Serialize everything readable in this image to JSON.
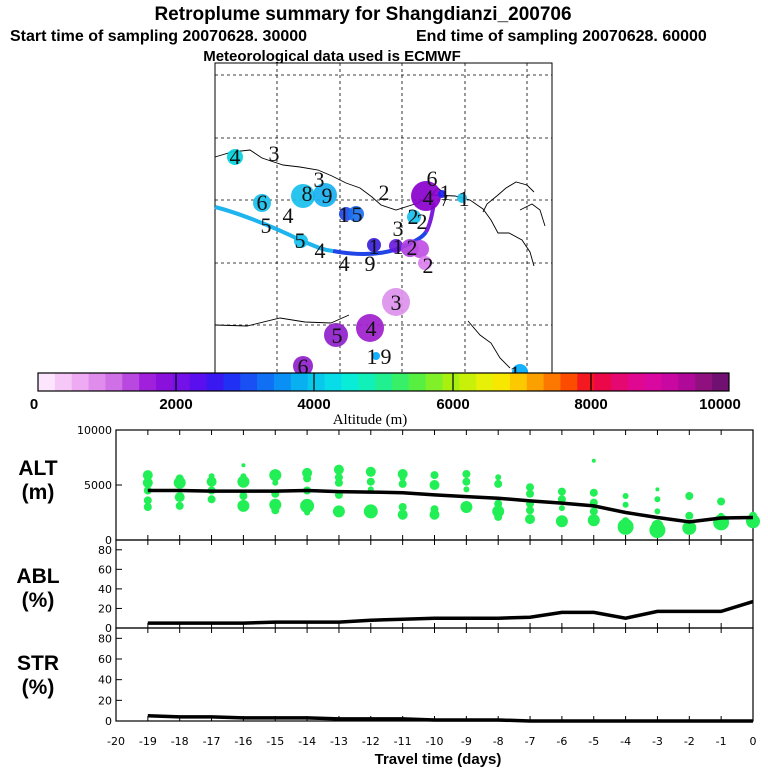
{
  "header": {
    "title": "Retroplume summary for Shangdianzi_200706",
    "start": "Start time of sampling 20070628. 30000",
    "end": "End time of sampling 20070628. 60000",
    "met": "Meteorological data used is ECMWF"
  },
  "colors": {
    "plume_line": "#1e4fe0",
    "plume_line_west": "#1ea8e8",
    "alt_dots": "#22ee55",
    "series_line": "#000000"
  },
  "map": {
    "labels": [
      {
        "t": "4",
        "c": "#00ccdd"
      },
      {
        "t": "3",
        "c": "#ffffff"
      },
      {
        "t": "3",
        "c": "#00ccdd"
      },
      {
        "t": "8",
        "c": "#00ccdd"
      },
      {
        "t": "9",
        "c": "#00a8ee"
      },
      {
        "t": "6",
        "c": "#00ccdd"
      },
      {
        "t": "5",
        "c": "#ffffff"
      },
      {
        "t": "4",
        "c": "#ffffff"
      },
      {
        "t": "1",
        "c": "#2222ee"
      },
      {
        "t": "5",
        "c": "#2222ee"
      },
      {
        "t": "5",
        "c": "#00ccdd"
      },
      {
        "t": "4",
        "c": "#ffffff"
      },
      {
        "t": "4",
        "c": "#ffffff"
      },
      {
        "t": "9",
        "c": "#3a20dd"
      },
      {
        "t": "2",
        "c": "#ffffff"
      },
      {
        "t": "2",
        "c": "#00ccdd"
      },
      {
        "t": "1",
        "c": "#5a10cc"
      },
      {
        "t": "1",
        "c": "#8a00cc"
      },
      {
        "t": "3",
        "c": "#8a00cc"
      },
      {
        "t": "2",
        "c": "#c040e0"
      },
      {
        "t": "2",
        "c": "#d070f0"
      },
      {
        "t": "6",
        "c": "#8a00cc"
      },
      {
        "t": "4",
        "c": "#8a00cc"
      },
      {
        "t": "1",
        "c": "#8a00cc"
      },
      {
        "t": "1",
        "c": "#00ccdd"
      },
      {
        "t": "3",
        "c": "#d88ee8"
      },
      {
        "t": "5",
        "c": "#a020cc"
      },
      {
        "t": "4",
        "c": "#a020cc"
      },
      {
        "t": "1",
        "c": "#00aaff"
      },
      {
        "t": "9",
        "c": "#ffffff"
      },
      {
        "t": "6",
        "c": "#9000cc"
      },
      {
        "t": "1",
        "c": "#00aaff"
      },
      {
        "t": "2",
        "c": "#ffffff"
      }
    ]
  },
  "colorbar": {
    "ticks": [
      "0",
      "2000",
      "4000",
      "6000",
      "8000",
      "10000"
    ],
    "label": "Altitude (m)",
    "colors": [
      "#fde6fd",
      "#f6c8f8",
      "#eeaaf2",
      "#e08cec",
      "#d070e6",
      "#b848e0",
      "#a020dc",
      "#8a10dc",
      "#7410e8",
      "#5a10ee",
      "#3a18f0",
      "#2030f4",
      "#1850f4",
      "#1070f4",
      "#0a90f4",
      "#08b0f0",
      "#08c8ec",
      "#08dce8",
      "#08ecd8",
      "#10f0b8",
      "#20f090",
      "#38f068",
      "#58f040",
      "#80f028",
      "#a8f010",
      "#c8f008",
      "#e8f008",
      "#f8e800",
      "#fcc800",
      "#fca000",
      "#fc7800",
      "#fc4c00",
      "#f41820",
      "#ec0848",
      "#e40870",
      "#e00890",
      "#d808a0",
      "#c808a0",
      "#b00898",
      "#901080",
      "#701070"
    ]
  },
  "chart_data": [
    {
      "type": "scatter",
      "panel": "ALT",
      "ylabel": "ALT\n(m)",
      "ylim": [
        0,
        10000
      ],
      "yticks": [
        0,
        5000,
        10000
      ],
      "xlim": [
        -20,
        0
      ],
      "series": [
        {
          "name": "Median altitude",
          "x": [
            -19,
            -18,
            -17,
            -16,
            -15,
            -14,
            -13,
            -12,
            -11,
            -10,
            -9,
            -8,
            -7,
            -6,
            -5,
            -4,
            -3,
            -2,
            -1,
            0
          ],
          "values": [
            4500,
            4500,
            4450,
            4450,
            4450,
            4500,
            4400,
            4350,
            4300,
            4100,
            3950,
            3800,
            3550,
            3350,
            3100,
            2500,
            2050,
            1650,
            2000,
            2050
          ]
        },
        {
          "name": "Altitude clusters",
          "points": [
            [
              -19,
              5900,
              5
            ],
            [
              -19,
              5200,
              5
            ],
            [
              -19,
              4500,
              4
            ],
            [
              -19,
              3600,
              4
            ],
            [
              -19,
              3000,
              4
            ],
            [
              -18,
              5600,
              4
            ],
            [
              -18,
              5200,
              6
            ],
            [
              -18,
              3900,
              5
            ],
            [
              -18,
              3100,
              4
            ],
            [
              -17,
              5800,
              3
            ],
            [
              -17,
              5300,
              5
            ],
            [
              -17,
              4500,
              4
            ],
            [
              -17,
              3700,
              4
            ],
            [
              -16,
              6800,
              2
            ],
            [
              -16,
              5800,
              3
            ],
            [
              -16,
              5300,
              6
            ],
            [
              -16,
              4000,
              4
            ],
            [
              -16,
              3100,
              6
            ],
            [
              -15,
              5900,
              6
            ],
            [
              -15,
              5200,
              3
            ],
            [
              -15,
              4200,
              4
            ],
            [
              -15,
              3200,
              6
            ],
            [
              -15,
              2700,
              4
            ],
            [
              -14,
              6100,
              5
            ],
            [
              -14,
              5600,
              4
            ],
            [
              -14,
              4500,
              4
            ],
            [
              -14,
              3100,
              7
            ],
            [
              -14,
              2500,
              3
            ],
            [
              -13,
              6400,
              5
            ],
            [
              -13,
              5700,
              4
            ],
            [
              -13,
              5200,
              4
            ],
            [
              -13,
              4100,
              4
            ],
            [
              -13,
              2600,
              6
            ],
            [
              -12,
              6200,
              5
            ],
            [
              -12,
              5300,
              4
            ],
            [
              -12,
              4600,
              3
            ],
            [
              -12,
              2600,
              7
            ],
            [
              -11,
              6000,
              5
            ],
            [
              -11,
              5600,
              3
            ],
            [
              -11,
              5100,
              4
            ],
            [
              -11,
              3000,
              4
            ],
            [
              -11,
              2300,
              5
            ],
            [
              -10,
              5900,
              4
            ],
            [
              -10,
              5000,
              5
            ],
            [
              -10,
              2800,
              4
            ],
            [
              -10,
              2300,
              5
            ],
            [
              -9,
              6000,
              4
            ],
            [
              -9,
              5300,
              4
            ],
            [
              -9,
              4600,
              3
            ],
            [
              -9,
              3000,
              6
            ],
            [
              -8,
              5700,
              3
            ],
            [
              -8,
              5100,
              4
            ],
            [
              -8,
              3300,
              4
            ],
            [
              -8,
              2600,
              6
            ],
            [
              -8,
              2100,
              4
            ],
            [
              -7,
              4800,
              4
            ],
            [
              -7,
              4200,
              4
            ],
            [
              -7,
              3300,
              4
            ],
            [
              -7,
              2700,
              4
            ],
            [
              -7,
              1900,
              5
            ],
            [
              -6,
              4400,
              4
            ],
            [
              -6,
              3700,
              4
            ],
            [
              -6,
              2900,
              3
            ],
            [
              -6,
              1700,
              6
            ],
            [
              -5,
              7200,
              2
            ],
            [
              -5,
              4300,
              4
            ],
            [
              -5,
              3400,
              4
            ],
            [
              -5,
              2600,
              4
            ],
            [
              -5,
              1800,
              6
            ],
            [
              -4,
              4000,
              3
            ],
            [
              -4,
              3200,
              3
            ],
            [
              -4,
              1700,
              4
            ],
            [
              -4,
              1200,
              8
            ],
            [
              -3,
              4600,
              2
            ],
            [
              -3,
              3700,
              3
            ],
            [
              -3,
              2600,
              3
            ],
            [
              -3,
              1300,
              6
            ],
            [
              -3,
              900,
              8
            ],
            [
              -2,
              4000,
              4
            ],
            [
              -2,
              2200,
              4
            ],
            [
              -2,
              1100,
              7
            ],
            [
              -1,
              3500,
              4
            ],
            [
              -1,
              2200,
              3
            ],
            [
              -1,
              1600,
              8
            ],
            [
              0,
              2200,
              4
            ],
            [
              0,
              1700,
              7
            ]
          ]
        }
      ]
    },
    {
      "type": "line",
      "panel": "ABL",
      "ylabel": "ABL\n(%)",
      "ylim": [
        0,
        90
      ],
      "yticks": [
        0,
        20,
        40,
        60,
        80
      ],
      "xlim": [
        -20,
        0
      ],
      "x": [
        -19,
        -18,
        -17,
        -16,
        -15,
        -14,
        -13,
        -12,
        -11,
        -10,
        -9,
        -8,
        -7,
        -6,
        -5,
        -4,
        -3,
        -2,
        -1,
        0
      ],
      "values": [
        5,
        5,
        5,
        5,
        6,
        6,
        6,
        8,
        9,
        10,
        10,
        10,
        11,
        16,
        16,
        10,
        17,
        17,
        17,
        27
      ]
    },
    {
      "type": "line",
      "panel": "STR",
      "ylabel": "STR\n(%)",
      "ylim": [
        0,
        90
      ],
      "yticks": [
        0,
        20,
        40,
        60,
        80
      ],
      "xlim": [
        -20,
        0
      ],
      "x": [
        -19,
        -18,
        -17,
        -16,
        -15,
        -14,
        -13,
        -12,
        -11,
        -10,
        -9,
        -8,
        -7,
        -6,
        -5,
        -4,
        -3,
        -2,
        -1,
        0
      ],
      "values": [
        5,
        4,
        4,
        3,
        3,
        3,
        2,
        2,
        2,
        1,
        1,
        1,
        0,
        0,
        0,
        0,
        0,
        0,
        0,
        0
      ]
    }
  ],
  "xaxis": {
    "ticks": [
      "-20",
      "-19",
      "-18",
      "-17",
      "-16",
      "-15",
      "-14",
      "-13",
      "-12",
      "-11",
      "-10",
      "-9",
      "-8",
      "-7",
      "-6",
      "-5",
      "-4",
      "-3",
      "-2",
      "-1",
      "0"
    ],
    "label": "Travel time (days)"
  }
}
